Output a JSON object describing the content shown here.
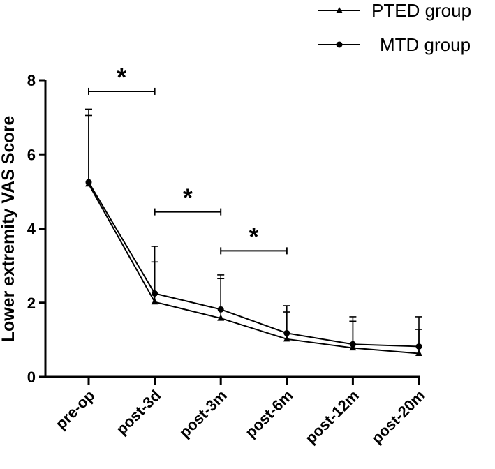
{
  "chart_data": {
    "type": "line",
    "title": "",
    "xlabel": "",
    "ylabel": "Lower extremity VAS Score",
    "ylim": [
      0,
      8
    ],
    "yticks": [
      0,
      2,
      4,
      6,
      8
    ],
    "categories": [
      "pre-op",
      "post-3d",
      "post-3m",
      "post-6m",
      "post-12m",
      "post-20m"
    ],
    "series": [
      {
        "name": "PTED group",
        "marker": "triangle",
        "values": [
          5.2,
          2.02,
          1.58,
          1.02,
          0.78,
          0.63
        ],
        "error_upper": [
          7.05,
          3.1,
          2.65,
          1.75,
          1.5,
          1.28
        ]
      },
      {
        "name": "MTD group",
        "marker": "circle",
        "values": [
          5.25,
          2.25,
          1.82,
          1.18,
          0.88,
          0.82
        ],
        "error_upper": [
          7.22,
          3.52,
          2.75,
          1.92,
          1.62,
          1.62
        ]
      }
    ],
    "significance": [
      {
        "from": "pre-op",
        "to": "post-3d",
        "label": "*",
        "level": 7.7
      },
      {
        "from": "post-3d",
        "to": "post-3m",
        "label": "*",
        "level": 4.45
      },
      {
        "from": "post-3m",
        "to": "post-6m",
        "label": "*",
        "level": 3.4
      }
    ],
    "legend_position": "top-right",
    "grid": false
  }
}
